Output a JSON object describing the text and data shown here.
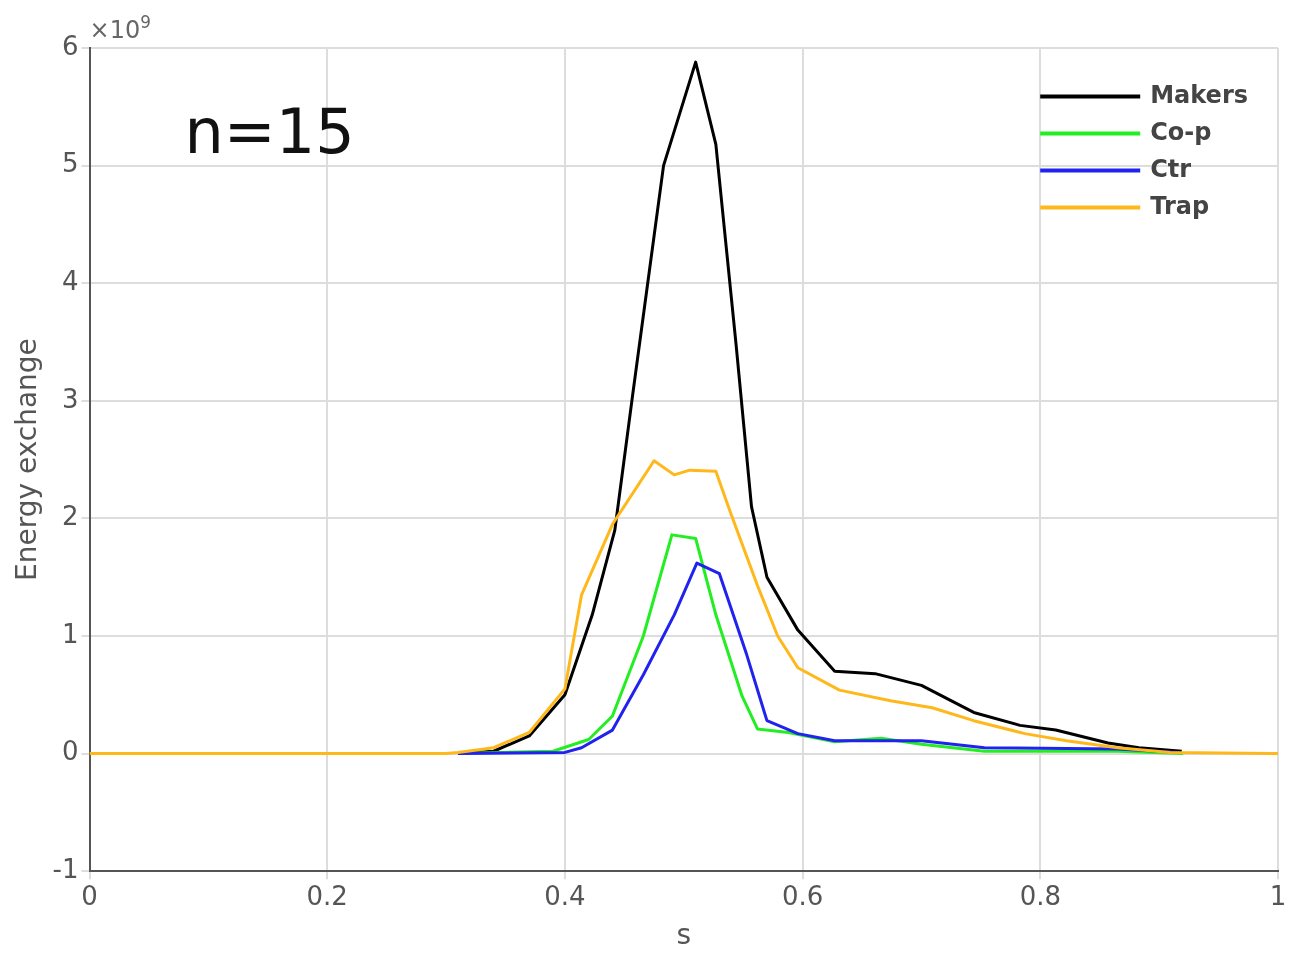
{
  "chart_data": {
    "type": "line",
    "xlabel": "s",
    "ylabel": "Energy exchange",
    "xlim": [
      0,
      1
    ],
    "xticks": [
      0,
      0.2,
      0.4,
      0.6,
      0.8,
      1
    ],
    "ylim": [
      -1,
      6
    ],
    "yticks": [
      -1,
      0,
      1,
      2,
      3,
      4,
      5,
      6
    ],
    "grid": true,
    "legend": "top right",
    "line_style": "solid",
    "marker": "none",
    "annotations": [
      "×10$^{9}$",
      "n=15"
    ],
    "series": [
      {
        "name": "Makers",
        "color": "#000000",
        "x": [
          0.31,
          0.34,
          0.37,
          0.4,
          0.423,
          0.442,
          0.457,
          0.483,
          0.51,
          0.527,
          0.544,
          0.557,
          0.57,
          0.596,
          0.627,
          0.661,
          0.7,
          0.744,
          0.783,
          0.813,
          0.857,
          0.883,
          0.919
        ],
        "values": [
          0,
          0.02,
          0.15,
          0.5,
          1.18,
          1.9,
          3.05,
          5.0,
          5.88,
          5.18,
          3.48,
          2.1,
          1.5,
          1.05,
          0.7,
          0.68,
          0.58,
          0.35,
          0.24,
          0.2,
          0.09,
          0.05,
          0.02
        ]
      },
      {
        "name": "Co-p",
        "color": "#22ee22",
        "x": [
          0.31,
          0.39,
          0.42,
          0.44,
          0.466,
          0.49,
          0.51,
          0.527,
          0.549,
          0.562,
          0.588,
          0.627,
          0.666,
          0.7,
          0.753,
          0.865,
          0.92
        ],
        "values": [
          0,
          0.02,
          0.12,
          0.32,
          1.0,
          1.86,
          1.83,
          1.18,
          0.49,
          0.21,
          0.18,
          0.1,
          0.13,
          0.08,
          0.02,
          0.02,
          0
        ]
      },
      {
        "name": "Ctr",
        "color": "#2222ee",
        "x": [
          0.31,
          0.4,
          0.414,
          0.44,
          0.466,
          0.492,
          0.511,
          0.53,
          0.553,
          0.57,
          0.596,
          0.627,
          0.7,
          0.753,
          0.865,
          0.917
        ],
        "values": [
          0,
          0.01,
          0.05,
          0.2,
          0.67,
          1.18,
          1.62,
          1.53,
          0.84,
          0.28,
          0.17,
          0.11,
          0.11,
          0.05,
          0.04,
          0.01
        ]
      },
      {
        "name": "Trap",
        "color": "#ffb81c",
        "x": [
          0,
          0.3,
          0.31,
          0.34,
          0.37,
          0.4,
          0.414,
          0.44,
          0.475,
          0.492,
          0.505,
          0.527,
          0.54,
          0.562,
          0.579,
          0.596,
          0.631,
          0.674,
          0.709,
          0.744,
          0.787,
          0.822,
          0.865,
          0.909,
          1
        ],
        "values": [
          0,
          0,
          0.01,
          0.05,
          0.18,
          0.55,
          1.35,
          1.95,
          2.49,
          2.37,
          2.41,
          2.4,
          2.03,
          1.43,
          1.0,
          0.73,
          0.54,
          0.45,
          0.39,
          0.28,
          0.17,
          0.11,
          0.05,
          0.01,
          0
        ]
      }
    ]
  }
}
